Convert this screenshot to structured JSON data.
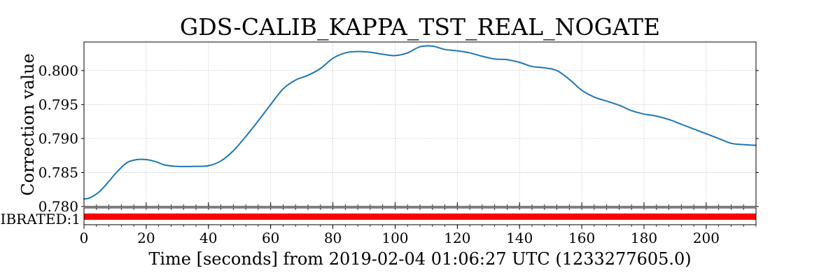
{
  "chart_data": {
    "type": "line",
    "title": "GDS-CALIB_KAPPA_TST_REAL_NOGATE",
    "ylabel": "Correction value",
    "xlabel": "Time [seconds] from 2019-02-04 01:06:27 UTC (1233277605.0)",
    "xlim": [
      0,
      216
    ],
    "ylim": [
      0.78,
      0.8042
    ],
    "grid": true,
    "x_ticks": [
      "0",
      "20",
      "40",
      "60",
      "80",
      "100",
      "120",
      "140",
      "160",
      "180",
      "200"
    ],
    "y_ticks": [
      "0.780",
      "0.785",
      "0.790",
      "0.795",
      "0.800"
    ],
    "series": [
      {
        "color": "#1f77b4",
        "x": [
          0,
          2,
          5,
          8,
          11,
          14,
          17,
          20,
          23,
          26,
          30,
          35,
          40,
          44,
          48,
          52,
          56,
          60,
          64,
          68,
          72,
          76,
          80,
          84,
          88,
          92,
          96,
          100,
          104,
          108,
          112,
          116,
          120,
          124,
          128,
          132,
          136,
          140,
          144,
          148,
          152,
          156,
          160,
          164,
          168,
          172,
          176,
          180,
          184,
          188,
          192,
          196,
          200,
          204,
          208,
          212,
          216
        ],
        "y": [
          0.7811,
          0.7813,
          0.7822,
          0.7837,
          0.7853,
          0.7865,
          0.7869,
          0.7869,
          0.7866,
          0.7861,
          0.7859,
          0.7859,
          0.786,
          0.7867,
          0.7882,
          0.7903,
          0.7926,
          0.795,
          0.7973,
          0.7986,
          0.7993,
          0.8003,
          0.8018,
          0.8026,
          0.8028,
          0.8027,
          0.8024,
          0.8022,
          0.8026,
          0.8035,
          0.8036,
          0.8031,
          0.8029,
          0.8026,
          0.8021,
          0.8017,
          0.8016,
          0.8012,
          0.8006,
          0.8004,
          0.8,
          0.7987,
          0.7971,
          0.7961,
          0.7955,
          0.7949,
          0.7941,
          0.7936,
          0.7933,
          0.7928,
          0.7921,
          0.7914,
          0.7907,
          0.79,
          0.7893,
          0.7891,
          0.789
        ]
      }
    ],
    "segment_track": {
      "label": "IBRATED:1",
      "color": "#ff0000",
      "segments": [
        [
          0,
          216
        ]
      ]
    }
  }
}
